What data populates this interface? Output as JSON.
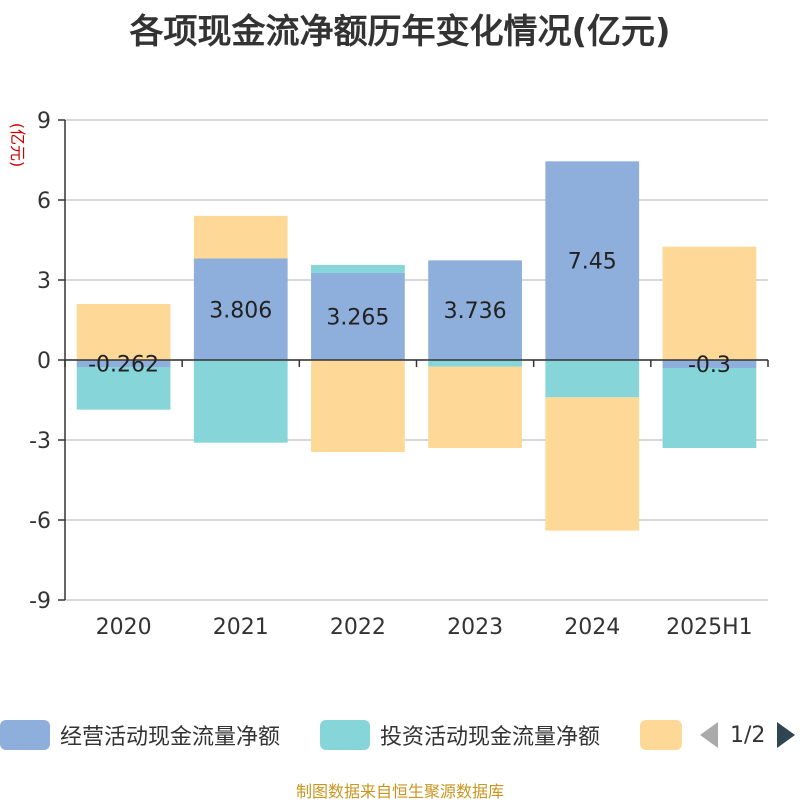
{
  "title": "各项现金流净额历年变化情况(亿元)",
  "source": "制图数据来自恒生聚源数据库",
  "colors": {
    "operating": "#8eaedb",
    "investing": "#86d5d8",
    "financing": "#fed897",
    "axis": "#333333",
    "grid": "#cccccc",
    "ylabel": "#cc0000",
    "value_label": "#222222"
  },
  "legend": {
    "items": [
      "经营活动现金流量净额",
      "投资活动现金流量净额",
      ""
    ],
    "page_text": "1/2"
  },
  "chart_data": {
    "type": "bar",
    "stacked": true,
    "categories": [
      "2020",
      "2021",
      "2022",
      "2023",
      "2024",
      "2025H1"
    ],
    "series": [
      {
        "name": "经营活动现金流量净额",
        "values": [
          -0.262,
          3.806,
          3.265,
          3.736,
          7.45,
          -0.3
        ],
        "labels": [
          "-0.262",
          "3.806",
          "3.265",
          "3.736",
          "7.45",
          "-0.3"
        ]
      },
      {
        "name": "投资活动现金流量净额",
        "values": [
          -1.6,
          -3.1,
          0.3,
          -0.25,
          -1.4,
          -3.0
        ]
      },
      {
        "values": [
          2.1,
          1.6,
          -3.45,
          -3.05,
          -5.0,
          4.25
        ]
      }
    ],
    "ylabel": "(亿元)",
    "ylim": [
      -9,
      9
    ],
    "yticks": [
      9,
      6,
      3,
      0,
      -3,
      -6,
      -9
    ],
    "grid": true,
    "legend_position": "bottom"
  }
}
